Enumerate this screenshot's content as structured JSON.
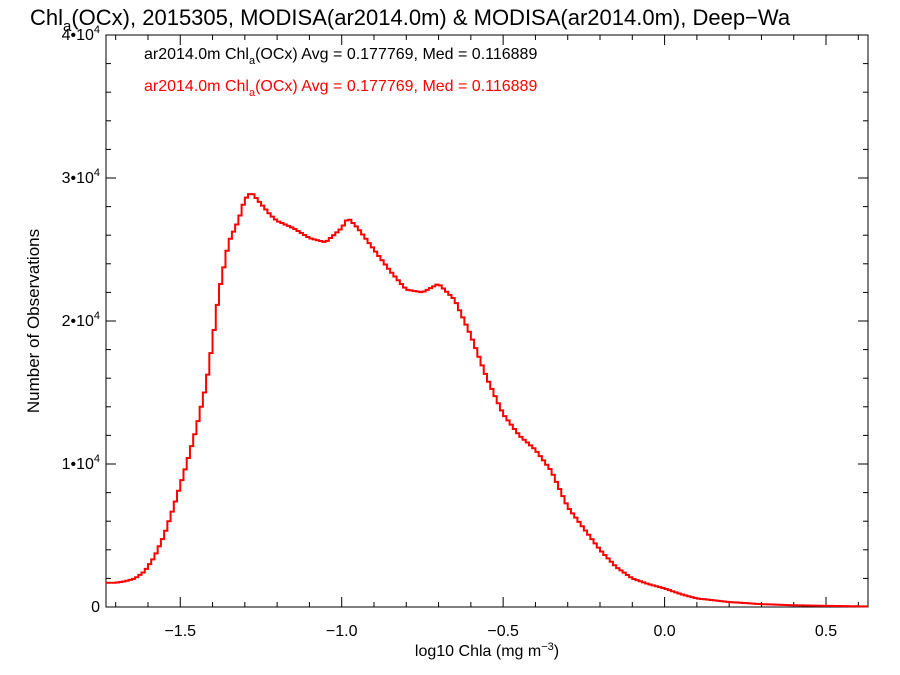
{
  "chart_data": {
    "type": "histogram",
    "title": {
      "prefix": "Chl",
      "sub": "a",
      "suffix": "(OCx), 2015305, MODISA(ar2014.0m) & MODISA(ar2014.0m), Deep−Wa"
    },
    "xlabel": {
      "text": "log10 Chla (mg m",
      "sup": "−3",
      "close": ")"
    },
    "ylabel": "Number of Observations",
    "xlim": [
      -1.73,
      0.63
    ],
    "ylim": [
      0,
      40000
    ],
    "xticks": [
      {
        "value": -1.5,
        "label": "−1.5"
      },
      {
        "value": -1.0,
        "label": "−1.0"
      },
      {
        "value": -0.5,
        "label": "−0.5"
      },
      {
        "value": 0.0,
        "label": "0.0"
      },
      {
        "value": 0.5,
        "label": "0.5"
      }
    ],
    "yticks": [
      {
        "value": 0,
        "base": "0",
        "exp": ""
      },
      {
        "value": 10000,
        "base": "1•10",
        "exp": "4"
      },
      {
        "value": 20000,
        "base": "2•10",
        "exp": "4"
      },
      {
        "value": 30000,
        "base": "3•10",
        "exp": "4"
      },
      {
        "value": 40000,
        "base": "4•10",
        "exp": "4"
      }
    ],
    "legend": [
      {
        "prefix": "ar2014.0m Chl",
        "sub": "a",
        "suffix": "(OCx) Avg = 0.177769, Med = 0.116889",
        "color": "#000000"
      },
      {
        "prefix": "ar2014.0m Chl",
        "sub": "a",
        "suffix": "(OCx) Avg = 0.177769, Med = 0.116889",
        "color": "#ff0000"
      }
    ],
    "series": [
      {
        "color": "#ff0000",
        "x": [
          -1.73,
          -1.7,
          -1.67,
          -1.64,
          -1.61,
          -1.58,
          -1.55,
          -1.52,
          -1.5,
          -1.48,
          -1.45,
          -1.42,
          -1.4,
          -1.38,
          -1.35,
          -1.32,
          -1.3,
          -1.28,
          -1.25,
          -1.22,
          -1.2,
          -1.18,
          -1.15,
          -1.1,
          -1.05,
          -1.0,
          -0.98,
          -0.95,
          -0.9,
          -0.85,
          -0.8,
          -0.75,
          -0.7,
          -0.65,
          -0.6,
          -0.55,
          -0.5,
          -0.45,
          -0.4,
          -0.35,
          -0.3,
          -0.25,
          -0.2,
          -0.15,
          -0.1,
          -0.05,
          0.0,
          0.05,
          0.1,
          0.2,
          0.3,
          0.4,
          0.5,
          0.63
        ],
        "y": [
          1700,
          1700,
          1800,
          2000,
          2500,
          3500,
          5000,
          7000,
          8500,
          10000,
          12500,
          15500,
          18500,
          22000,
          25500,
          27000,
          28500,
          29000,
          28200,
          27400,
          27000,
          26800,
          26500,
          25800,
          25500,
          26500,
          27200,
          26500,
          25000,
          23500,
          22200,
          22000,
          22600,
          21500,
          19000,
          16000,
          13500,
          12000,
          11000,
          9500,
          7000,
          5500,
          4000,
          2800,
          2000,
          1600,
          1300,
          900,
          600,
          350,
          200,
          120,
          80,
          40
        ]
      }
    ]
  }
}
